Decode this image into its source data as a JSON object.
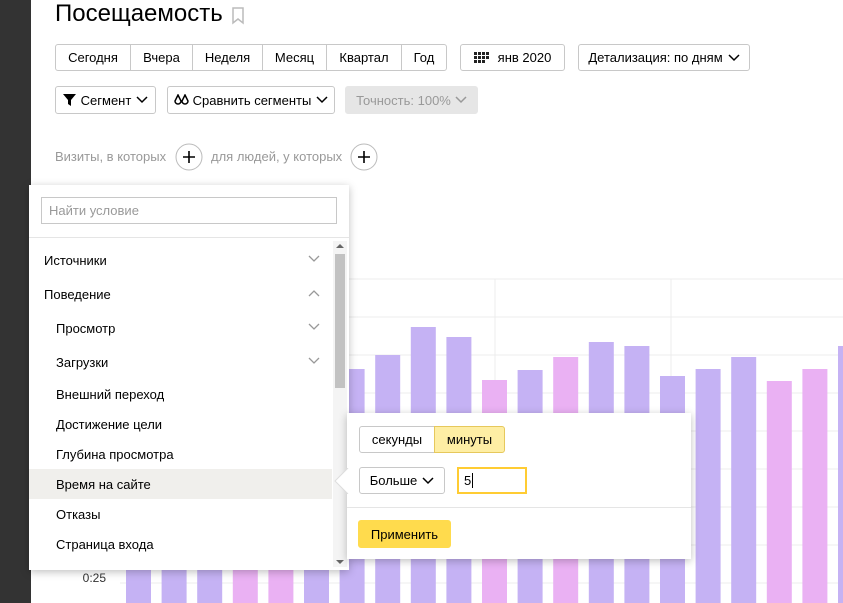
{
  "header": {
    "title": "Посещаемость"
  },
  "period_buttons": [
    "Сегодня",
    "Вчера",
    "Неделя",
    "Месяц",
    "Квартал",
    "Год"
  ],
  "date_button": "янв 2020",
  "detail_button": "Детализация: по дням",
  "segment_button": "Сегмент",
  "compare_button": "Сравнить сегменты",
  "accuracy_button": "Точность: 100%",
  "filter": {
    "visits_label": "Визиты, в которых",
    "people_label": "для людей, у которых"
  },
  "condition_panel": {
    "search_placeholder": "Найти условие",
    "items": [
      "Источники",
      "Поведение",
      "Просмотр",
      "Загрузки",
      "Внешний переход",
      "Достижение цели",
      "Глубина просмотра",
      "Время на сайте",
      "Отказы",
      "Страница входа"
    ]
  },
  "time_popup": {
    "units": [
      "секунды",
      "минуты"
    ],
    "comparison": "Больше",
    "value": "5",
    "apply": "Применить"
  },
  "chart": {
    "y_label": "0:25"
  }
}
